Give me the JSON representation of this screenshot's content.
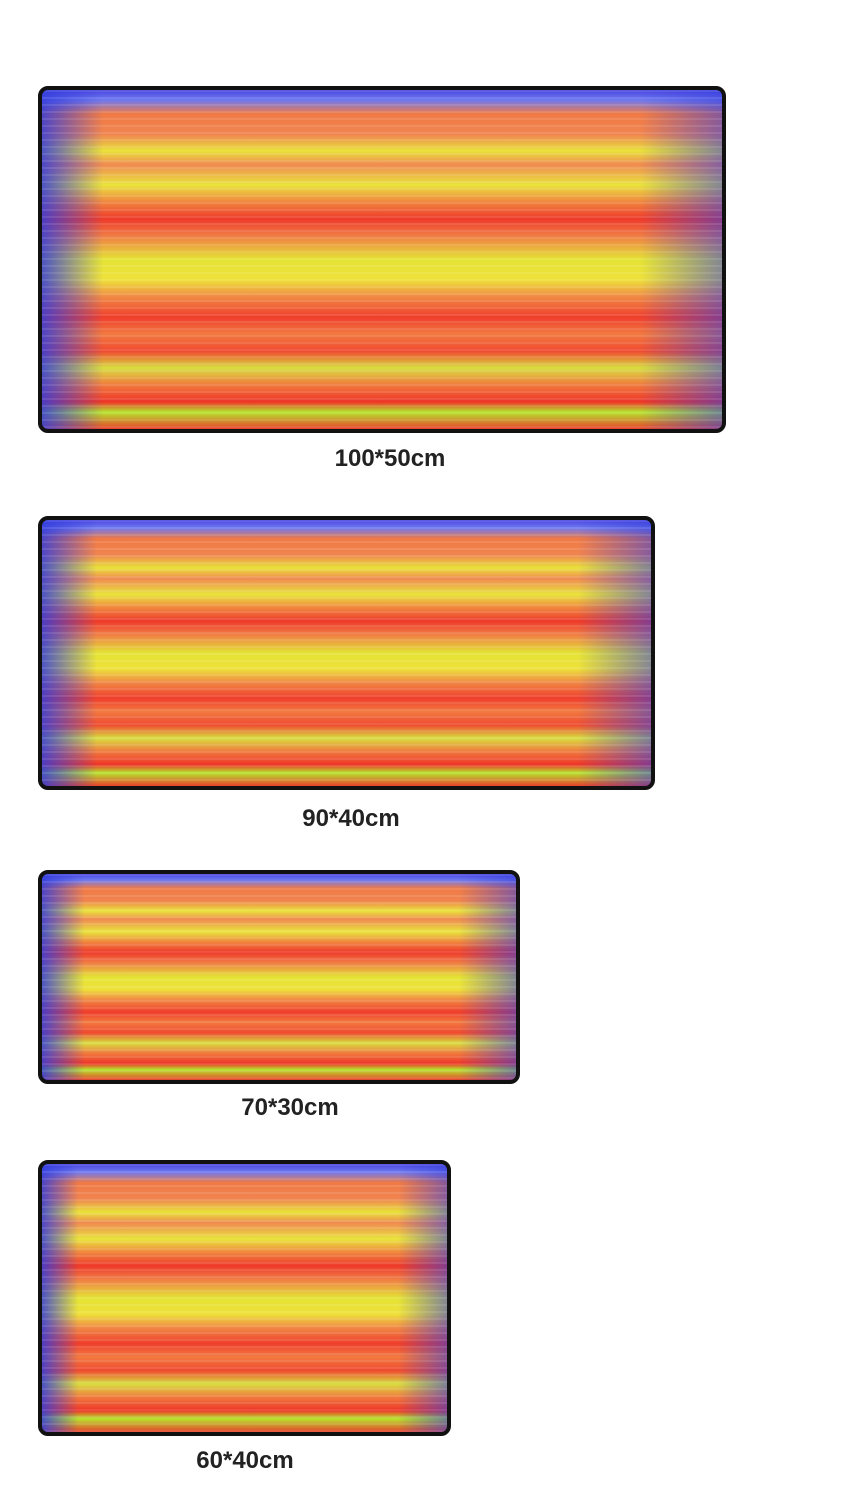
{
  "items": [
    {
      "label": "100*50cm"
    },
    {
      "label": "90*40cm"
    },
    {
      "label": "70*30cm"
    },
    {
      "label": "60*40cm"
    }
  ]
}
